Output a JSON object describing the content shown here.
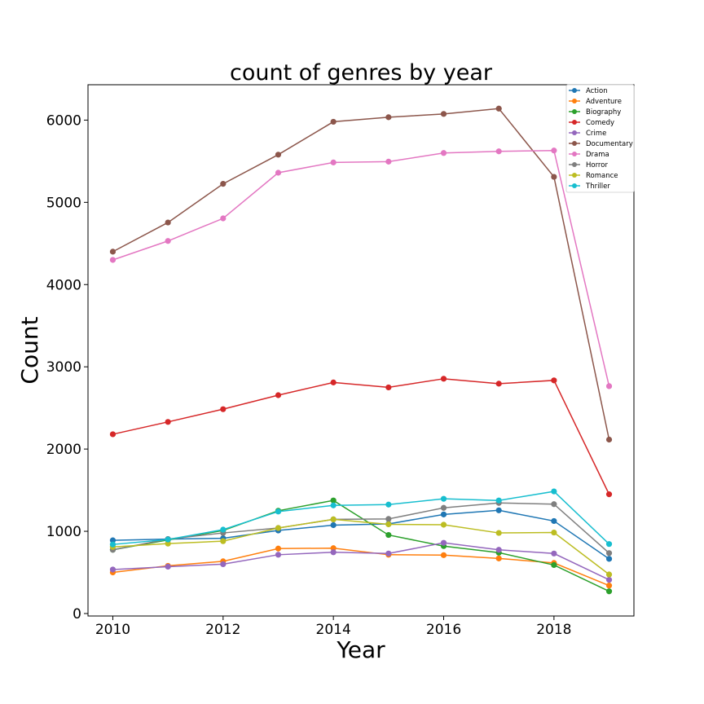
{
  "chart_data": {
    "type": "line",
    "title": "count of genres by year",
    "xlabel": "Year",
    "ylabel": "Count",
    "xlim": [
      2009.55,
      2019.45
    ],
    "ylim": [
      -30,
      6430
    ],
    "xticks": [
      2010,
      2012,
      2014,
      2016,
      2018
    ],
    "yticks": [
      0,
      1000,
      2000,
      3000,
      4000,
      5000,
      6000
    ],
    "grid": false,
    "legend_position": "top-right",
    "x": [
      2010,
      2011,
      2012,
      2013,
      2014,
      2015,
      2016,
      2017,
      2018,
      2019
    ],
    "series": [
      {
        "name": "Action",
        "color": "#1f77b4",
        "values": [
          890,
          905,
          915,
          1010,
          1075,
          1090,
          1205,
          1255,
          1125,
          665
        ]
      },
      {
        "name": "Adventure",
        "color": "#ff7f0e",
        "values": [
          500,
          580,
          635,
          790,
          795,
          715,
          710,
          670,
          615,
          340
        ]
      },
      {
        "name": "Biography",
        "color": "#2ca02c",
        "values": [
          775,
          895,
          1010,
          1250,
          1375,
          955,
          820,
          740,
          590,
          270
        ]
      },
      {
        "name": "Comedy",
        "color": "#d62728",
        "values": [
          2180,
          2330,
          2485,
          2655,
          2810,
          2750,
          2855,
          2795,
          2835,
          1450
        ]
      },
      {
        "name": "Crime",
        "color": "#9467bd",
        "values": [
          535,
          570,
          600,
          715,
          745,
          730,
          860,
          775,
          730,
          410
        ]
      },
      {
        "name": "Documentary",
        "color": "#8c564b",
        "values": [
          4400,
          4755,
          5225,
          5580,
          5980,
          6035,
          6075,
          6140,
          5310,
          2115
        ]
      },
      {
        "name": "Drama",
        "color": "#e377c2",
        "values": [
          4300,
          4530,
          4805,
          5360,
          5485,
          5495,
          5600,
          5620,
          5630,
          2765
        ]
      },
      {
        "name": "Horror",
        "color": "#7f7f7f",
        "values": [
          775,
          905,
          980,
          1040,
          1145,
          1150,
          1285,
          1345,
          1330,
          735
        ]
      },
      {
        "name": "Romance",
        "color": "#bcbd22",
        "values": [
          810,
          850,
          880,
          1040,
          1145,
          1085,
          1080,
          980,
          985,
          475
        ]
      },
      {
        "name": "Thriller",
        "color": "#17becf",
        "values": [
          840,
          900,
          1020,
          1240,
          1315,
          1325,
          1395,
          1375,
          1485,
          845
        ]
      }
    ]
  }
}
